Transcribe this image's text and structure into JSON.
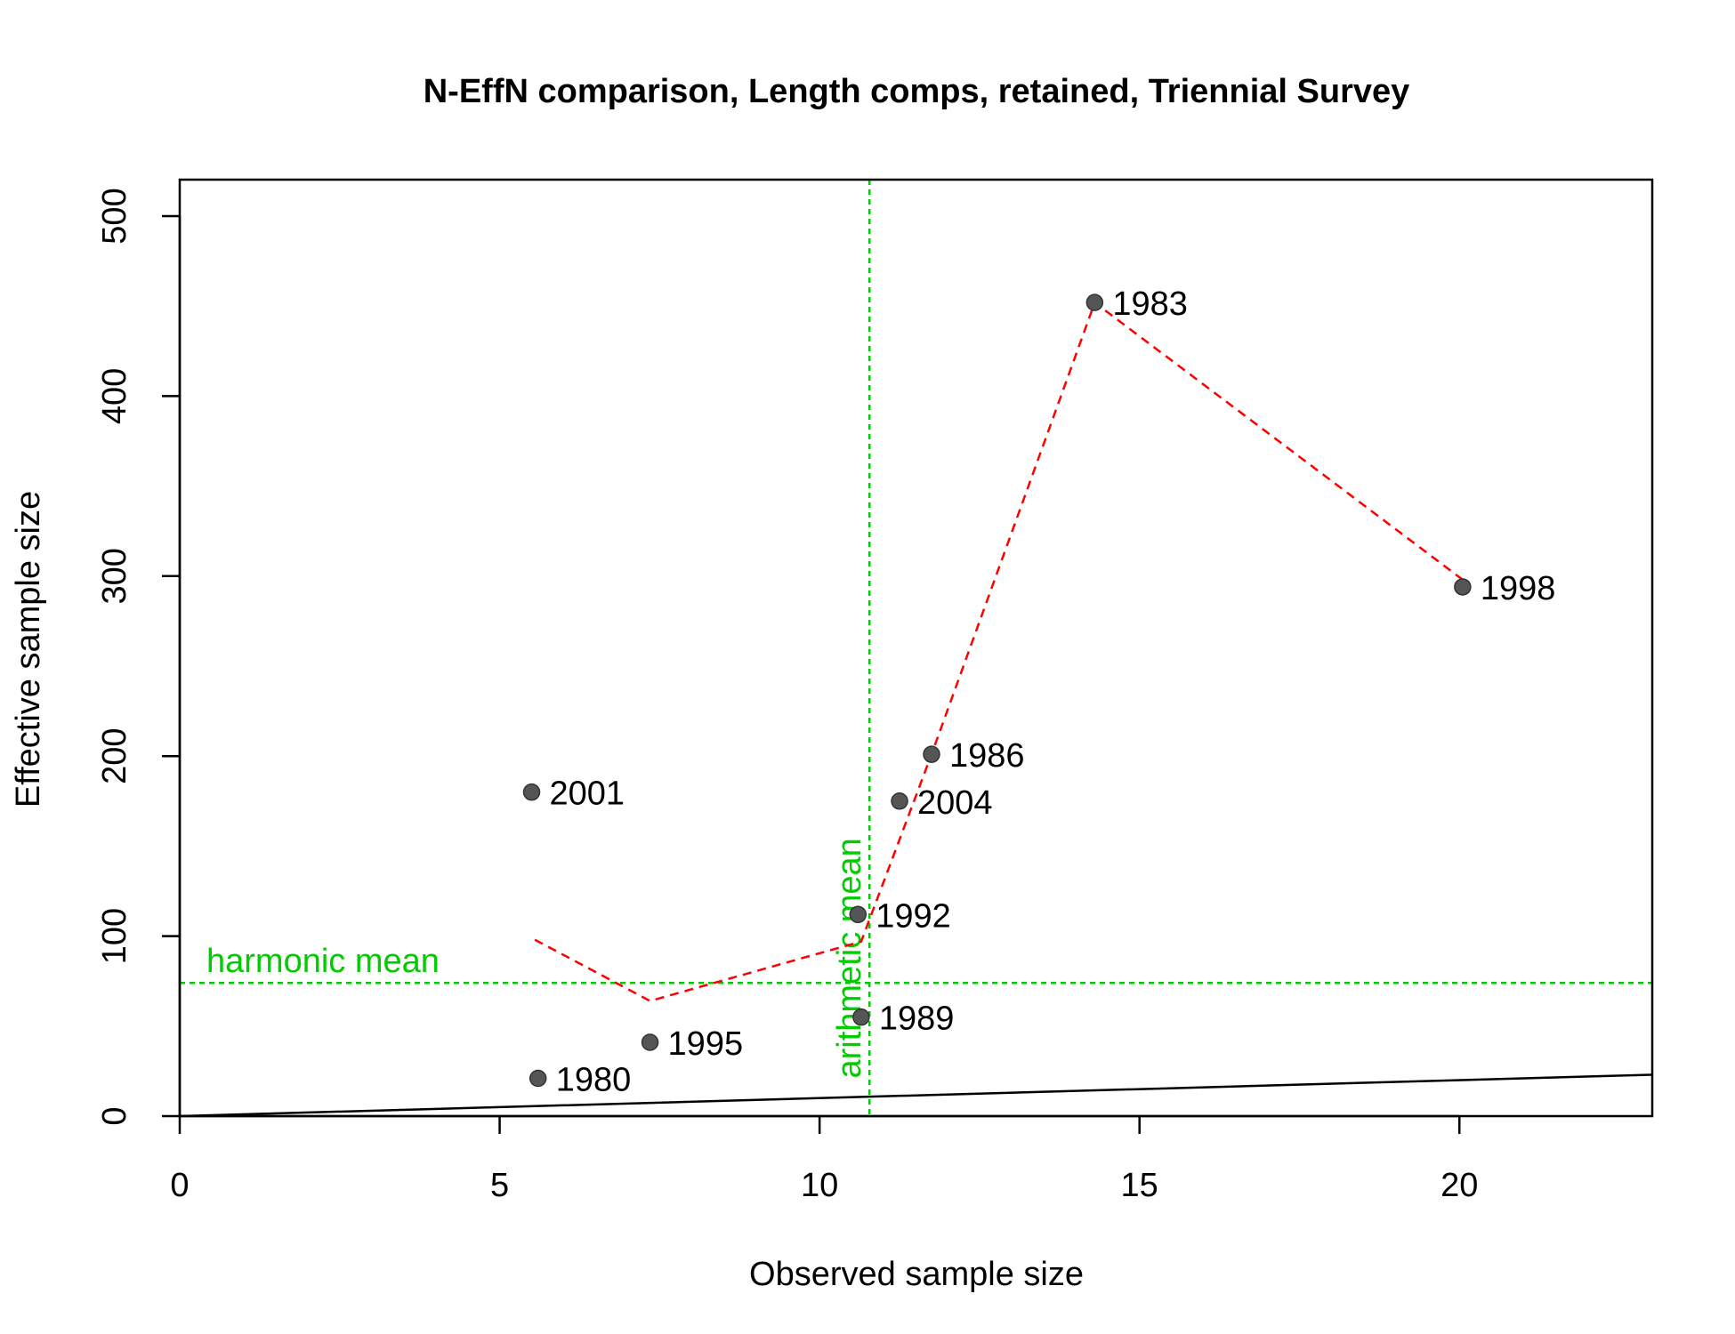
{
  "chart_data": {
    "type": "scatter",
    "title": "N-EffN comparison, Length comps, retained, Triennial Survey",
    "xlabel": "Observed sample size",
    "ylabel": "Effective sample size",
    "xlim": [
      0,
      23
    ],
    "ylim": [
      0,
      500
    ],
    "xticks": [
      0,
      5,
      10,
      15,
      20
    ],
    "yticks": [
      0,
      100,
      200,
      300,
      400,
      500
    ],
    "grid": false,
    "points": [
      {
        "label": "1980",
        "x": 5.6,
        "y": 21
      },
      {
        "label": "1983",
        "x": 14.3,
        "y": 452
      },
      {
        "label": "1986",
        "x": 11.75,
        "y": 201
      },
      {
        "label": "1989",
        "x": 10.65,
        "y": 55
      },
      {
        "label": "1992",
        "x": 10.6,
        "y": 112
      },
      {
        "label": "1995",
        "x": 7.35,
        "y": 41
      },
      {
        "label": "1998",
        "x": 20.05,
        "y": 294
      },
      {
        "label": "2001",
        "x": 5.5,
        "y": 180
      },
      {
        "label": "2004",
        "x": 11.25,
        "y": 175
      }
    ],
    "point_color": "#555555",
    "smoother": {
      "color": "#ff0000",
      "style": "dashed",
      "x": [
        5.55,
        7.35,
        10.65,
        11.75,
        14.3,
        20.05
      ],
      "y": [
        98,
        64,
        97,
        201,
        452,
        298
      ]
    },
    "one_to_one_line": {
      "color": "#000000",
      "x": [
        0,
        23
      ],
      "y": [
        0,
        23
      ]
    },
    "harmonic_mean": {
      "label": "harmonic mean",
      "value": 74,
      "color": "#00cc00"
    },
    "arithmetic_mean": {
      "label": "arithmetic mean",
      "value": 10.78,
      "color": "#00cc00"
    }
  }
}
